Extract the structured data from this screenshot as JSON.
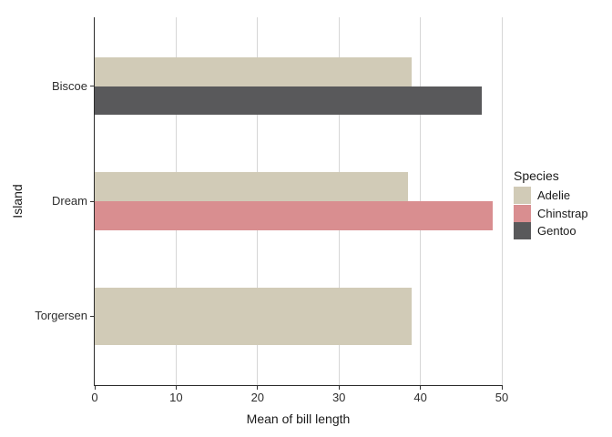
{
  "chart_data": {
    "type": "bar",
    "orientation": "horizontal",
    "title": "",
    "xlabel": "Mean of bill length",
    "ylabel": "Island",
    "xlim": [
      0,
      50
    ],
    "x_ticks": [
      0,
      10,
      20,
      30,
      40,
      50
    ],
    "grid": "vertical-major-only",
    "categories": [
      "Biscoe",
      "Dream",
      "Torgersen"
    ],
    "legend": {
      "title": "Species",
      "position": "right",
      "entries": [
        "Adelie",
        "Chinstrap",
        "Gentoo"
      ]
    },
    "series": [
      {
        "name": "Adelie",
        "color": "#D1CBB7",
        "values": [
          38.98,
          38.5,
          38.95
        ]
      },
      {
        "name": "Chinstrap",
        "color": "#D98E90",
        "values": [
          null,
          48.83,
          null
        ]
      },
      {
        "name": "Gentoo",
        "color": "#59595B",
        "values": [
          47.51,
          null,
          null
        ]
      }
    ],
    "colors": {
      "background": "#FFFFFF",
      "gridline": "#D6D6D6",
      "axis_line": "#2B2B2B",
      "tick_mark": "#333333",
      "tick_label_text": "#2E2E2E",
      "title_text": "#1A1A1A"
    }
  }
}
